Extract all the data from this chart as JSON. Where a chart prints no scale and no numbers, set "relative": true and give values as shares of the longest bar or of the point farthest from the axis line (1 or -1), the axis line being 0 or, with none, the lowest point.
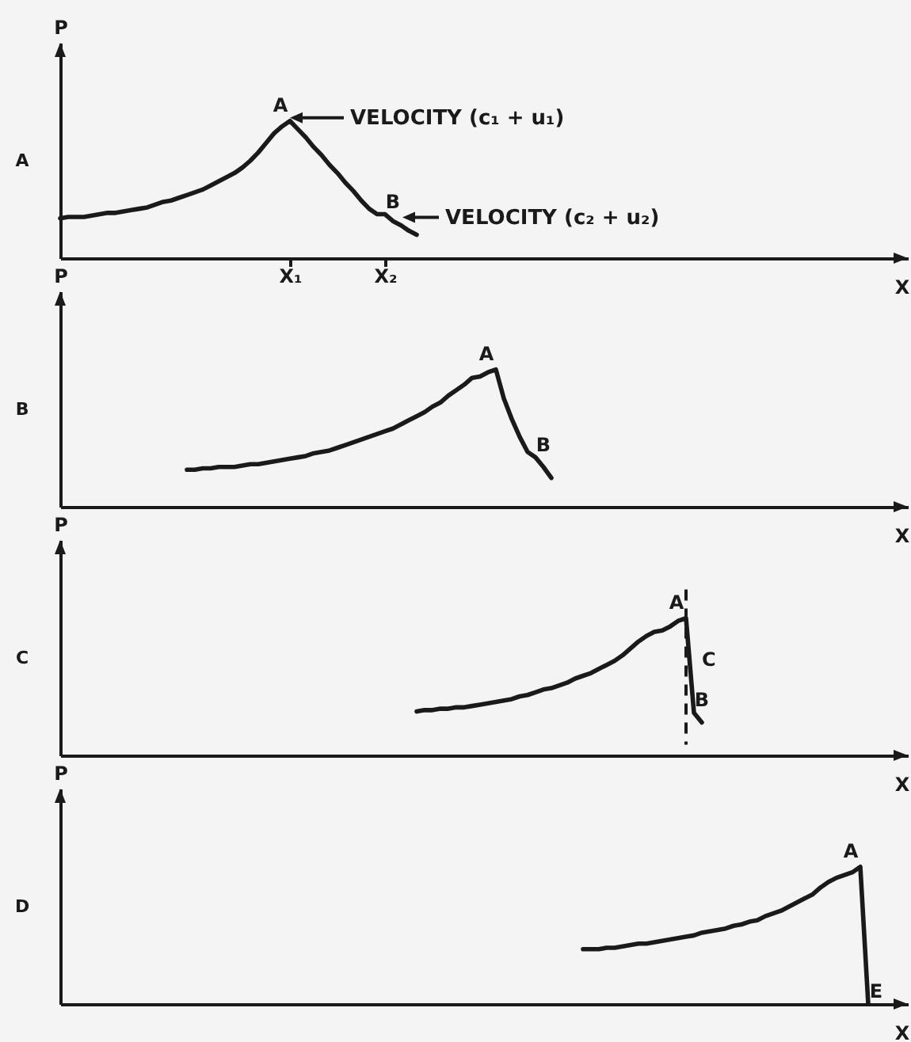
{
  "chart_data": [
    {
      "type": "line",
      "title": "A",
      "xlabel": "X",
      "ylabel": "P",
      "relative": true,
      "color": "#1a1a1a",
      "categories": [
        null,
        null,
        null,
        null,
        null,
        null,
        null,
        null,
        null,
        null,
        null,
        null,
        null,
        null,
        null,
        null,
        null,
        null,
        null,
        null,
        null,
        null,
        null,
        null,
        null,
        null,
        null,
        null,
        null,
        "X₁",
        null,
        null,
        null,
        null,
        null,
        null,
        null,
        null,
        null,
        null,
        null,
        "X₂",
        null,
        null,
        null,
        null,
        null,
        null,
        null,
        null,
        null,
        null,
        null,
        null,
        null,
        null,
        null,
        null,
        null,
        null,
        null,
        null,
        null,
        null,
        null,
        null,
        null,
        null,
        null,
        null,
        null,
        null,
        null,
        null,
        null,
        null,
        null,
        null,
        null,
        null,
        null,
        null,
        null,
        null,
        null,
        null,
        null,
        null,
        null,
        null,
        null,
        null,
        null,
        null,
        null,
        null,
        null,
        null,
        null,
        null,
        null,
        null,
        null,
        null,
        null,
        null,
        null,
        null
      ],
      "values": [
        0.29,
        0.3,
        0.3,
        0.3,
        0.31,
        0.32,
        0.33,
        0.33,
        0.34,
        0.35,
        0.36,
        0.37,
        0.39,
        0.41,
        0.42,
        0.44,
        0.46,
        0.48,
        0.5,
        0.53,
        0.56,
        0.59,
        0.62,
        0.66,
        0.71,
        0.77,
        0.84,
        0.91,
        0.96,
        1,
        0.94,
        0.88,
        0.81,
        0.75,
        0.68,
        0.62,
        0.55,
        0.49,
        0.42,
        0.36,
        0.32,
        0.32,
        0.27,
        0.24,
        0.2,
        0.17,
        null,
        null,
        null,
        null,
        null,
        null,
        null,
        null,
        null,
        null,
        null,
        null,
        null,
        null,
        null,
        null,
        null,
        null,
        null,
        null,
        null,
        null,
        null,
        null,
        null,
        null,
        null,
        null,
        null,
        null,
        null,
        null,
        null,
        null,
        null,
        null,
        null,
        null,
        null,
        null,
        null,
        null,
        null,
        null,
        null,
        null,
        null,
        null,
        null,
        null,
        null,
        null,
        null,
        null,
        null,
        null,
        null,
        null,
        null,
        null,
        null,
        null
      ],
      "annotations": [
        {
          "text": "A",
          "x": "X₁",
          "y": 1
        },
        "VELOCITY (c₁ + u₁)",
        {
          "text": "B",
          "x": "X₂",
          "y": 0.32
        },
        "VELOCITY (c₂ + u₂)"
      ]
    },
    {
      "type": "line",
      "title": "B",
      "xlabel": "X",
      "ylabel": "P",
      "relative": true,
      "color": "#1a1a1a",
      "categories": [
        null,
        null,
        null,
        null,
        null,
        null,
        null,
        null,
        null,
        null,
        null,
        null,
        null,
        null,
        null,
        null,
        null,
        null,
        null,
        null,
        null,
        null,
        null,
        null,
        null,
        null,
        null,
        null,
        null,
        null,
        null,
        null,
        null,
        null,
        null,
        null,
        null,
        null,
        null,
        null,
        null,
        null,
        null,
        null,
        null,
        null,
        null,
        null,
        null,
        null,
        null,
        null,
        null,
        null,
        null,
        null,
        null,
        null,
        null,
        null,
        null,
        null,
        null,
        null,
        null,
        null,
        null,
        null,
        null,
        null,
        null,
        null,
        null,
        null,
        null,
        null,
        null,
        null,
        null,
        null,
        null,
        null,
        null,
        null,
        null,
        null,
        null,
        null,
        null,
        null,
        null,
        null,
        null,
        null,
        null,
        null,
        null,
        null,
        null,
        null,
        null,
        null,
        null,
        null,
        null,
        null,
        null,
        null
      ],
      "values": [
        null,
        null,
        null,
        null,
        null,
        null,
        null,
        null,
        null,
        null,
        null,
        null,
        null,
        null,
        null,
        null,
        0.27,
        0.27,
        0.28,
        0.28,
        0.29,
        0.29,
        0.29,
        0.3,
        0.31,
        0.31,
        0.32,
        0.33,
        0.34,
        0.35,
        0.36,
        0.37,
        0.39,
        0.4,
        0.41,
        0.43,
        0.45,
        0.47,
        0.49,
        0.51,
        0.53,
        0.55,
        0.57,
        0.6,
        0.63,
        0.66,
        0.69,
        0.73,
        0.76,
        0.81,
        0.85,
        0.89,
        0.94,
        0.95,
        0.98,
        1,
        0.79,
        0.64,
        0.51,
        0.4,
        0.36,
        0.29,
        0.21,
        null,
        null,
        null,
        null,
        null,
        null,
        null,
        null,
        null,
        null,
        null,
        null,
        null,
        null,
        null,
        null,
        null,
        null,
        null,
        null,
        null,
        null,
        null,
        null,
        null,
        null,
        null,
        null,
        null,
        null,
        null,
        null,
        null,
        null,
        null,
        null,
        null,
        null,
        null,
        null,
        null,
        null,
        null,
        null,
        null
      ],
      "annotations": [
        {
          "text": "A",
          "y": 1
        },
        {
          "text": "B",
          "y": 0.36
        }
      ]
    },
    {
      "type": "line",
      "title": "C",
      "xlabel": "X",
      "ylabel": "P",
      "relative": true,
      "color": "#1a1a1a",
      "categories": [
        null,
        null,
        null,
        null,
        null,
        null,
        null,
        null,
        null,
        null,
        null,
        null,
        null,
        null,
        null,
        null,
        null,
        null,
        null,
        null,
        null,
        null,
        null,
        null,
        null,
        null,
        null,
        null,
        null,
        null,
        null,
        null,
        null,
        null,
        null,
        null,
        null,
        null,
        null,
        null,
        null,
        null,
        null,
        null,
        null,
        null,
        null,
        null,
        null,
        null,
        null,
        null,
        null,
        null,
        null,
        null,
        null,
        null,
        null,
        null,
        null,
        null,
        null,
        null,
        null,
        null,
        null,
        null,
        null,
        null,
        null,
        null,
        null,
        null,
        null,
        null,
        null,
        null,
        null,
        null,
        null,
        null,
        null,
        null,
        null,
        null,
        null,
        null,
        null,
        null,
        null,
        null,
        null,
        null,
        null,
        null,
        null,
        null,
        null,
        null,
        null,
        null,
        null,
        null,
        null,
        null,
        null,
        null
      ],
      "values": [
        null,
        null,
        null,
        null,
        null,
        null,
        null,
        null,
        null,
        null,
        null,
        null,
        null,
        null,
        null,
        null,
        null,
        null,
        null,
        null,
        null,
        null,
        null,
        null,
        null,
        null,
        null,
        null,
        null,
        null,
        null,
        null,
        null,
        null,
        null,
        null,
        null,
        null,
        null,
        null,
        null,
        null,
        null,
        null,
        null,
        0.32,
        0.33,
        0.33,
        0.34,
        0.34,
        0.35,
        0.35,
        0.36,
        0.37,
        0.38,
        0.39,
        0.4,
        0.41,
        0.43,
        0.44,
        0.46,
        0.48,
        0.49,
        0.51,
        0.53,
        0.56,
        0.58,
        0.6,
        0.63,
        0.66,
        0.69,
        0.73,
        0.78,
        0.83,
        0.87,
        0.9,
        0.91,
        0.94,
        0.98,
        1,
        0.31,
        0.24,
        null,
        null,
        null,
        null,
        null,
        null,
        null,
        null,
        null,
        null,
        null,
        null,
        null,
        null,
        null,
        null,
        null,
        null,
        null,
        null,
        null,
        null,
        null,
        null,
        null,
        null
      ],
      "annotations": [
        "C",
        {
          "text": "A",
          "y": 1
        },
        {
          "text": "B",
          "y": 0.31
        }
      ]
    },
    {
      "type": "line",
      "title": "D",
      "xlabel": "X",
      "ylabel": "P",
      "relative": true,
      "color": "#1a1a1a",
      "categories": [
        null,
        null,
        null,
        null,
        null,
        null,
        null,
        null,
        null,
        null,
        null,
        null,
        null,
        null,
        null,
        null,
        null,
        null,
        null,
        null,
        null,
        null,
        null,
        null,
        null,
        null,
        null,
        null,
        null,
        null,
        null,
        null,
        null,
        null,
        null,
        null,
        null,
        null,
        null,
        null,
        null,
        null,
        null,
        null,
        null,
        null,
        null,
        null,
        null,
        null,
        null,
        null,
        null,
        null,
        null,
        null,
        null,
        null,
        null,
        null,
        null,
        null,
        null,
        null,
        null,
        null,
        null,
        null,
        null,
        null,
        null,
        null,
        null,
        null,
        null,
        null,
        null,
        null,
        null,
        null,
        null,
        null,
        null,
        null,
        null,
        null,
        null,
        null,
        null,
        null,
        null,
        null,
        null,
        null,
        null,
        null,
        null,
        null,
        null,
        null,
        null,
        null,
        null,
        null,
        null,
        null,
        null,
        null
      ],
      "values": [
        null,
        null,
        null,
        null,
        null,
        null,
        null,
        null,
        null,
        null,
        null,
        null,
        null,
        null,
        null,
        null,
        null,
        null,
        null,
        null,
        null,
        null,
        null,
        null,
        null,
        null,
        null,
        null,
        null,
        null,
        null,
        null,
        null,
        null,
        null,
        null,
        null,
        null,
        null,
        null,
        null,
        null,
        null,
        null,
        null,
        null,
        null,
        null,
        null,
        null,
        null,
        null,
        null,
        null,
        null,
        null,
        null,
        null,
        null,
        null,
        null,
        null,
        null,
        null,
        null,
        null,
        0.4,
        0.4,
        0.4,
        0.41,
        0.41,
        0.42,
        0.43,
        0.44,
        0.44,
        0.45,
        0.46,
        0.47,
        0.48,
        0.49,
        0.5,
        0.52,
        0.53,
        0.54,
        0.55,
        0.57,
        0.58,
        0.6,
        0.61,
        0.64,
        0.66,
        0.68,
        0.71,
        0.74,
        0.77,
        0.8,
        0.85,
        0.89,
        0.92,
        0.94,
        0.96,
        1,
        0,
        null,
        null,
        null,
        null,
        null
      ],
      "annotations": [
        {
          "text": "A",
          "y": 1
        },
        {
          "text": "E",
          "y": 0
        }
      ]
    }
  ]
}
